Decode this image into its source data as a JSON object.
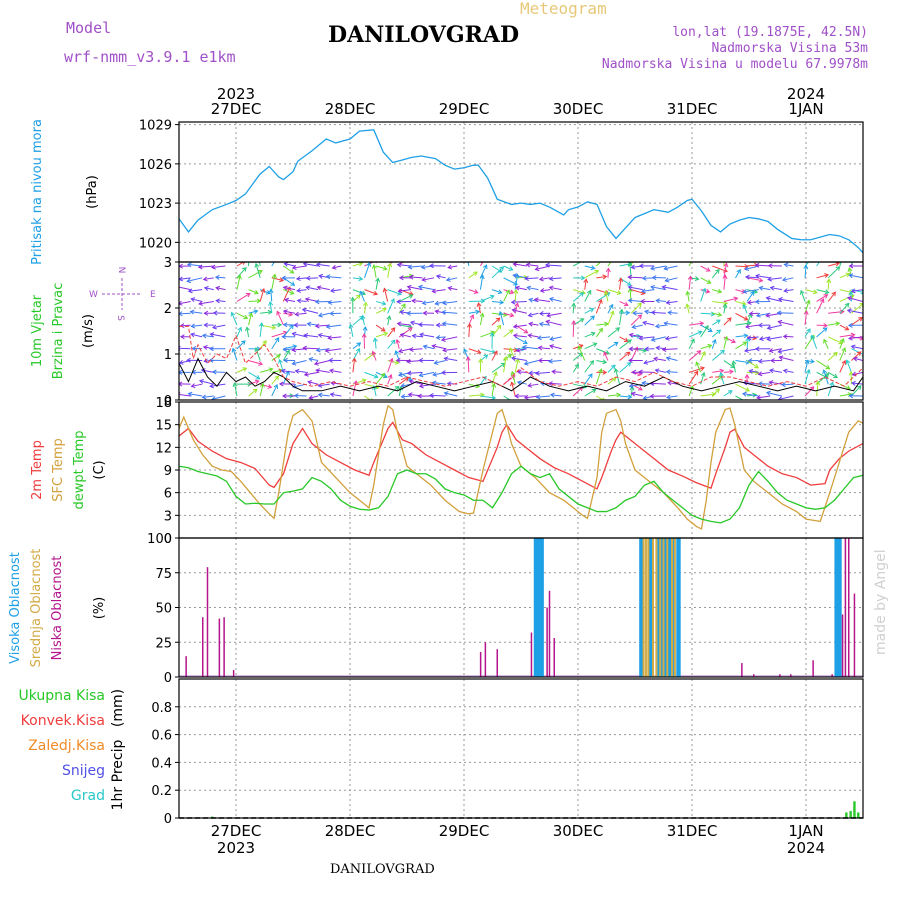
{
  "header": {
    "model_label": "Model",
    "model_value": "wrf-nmm_v3.9.1 e1km",
    "title": "DANILOVGRAD",
    "subtitle": "Meteogram",
    "lonlat": "lon,lat (19.1875E, 42.5N)",
    "elevation": "Nadmorska Visina 53m",
    "model_elevation": "Nadmorska Visina u modelu 67.9978m",
    "footer": "DANILOVGRAD",
    "credit": "made by Angel"
  },
  "colors": {
    "pressure": "#1ea0e6",
    "temp2m": "#f03c3c",
    "sfc_temp": "#d2a03c",
    "dewpoint": "#28c828",
    "high_cloud": "#1ea0e6",
    "mid_cloud": "#d2aa46",
    "low_cloud": "#b4148c",
    "total_precip": "#28c828",
    "conv_precip": "#f03c3c",
    "frozen_precip": "#f08c28",
    "snow": "#5050e6",
    "graupel": "#28c8c8",
    "wind_speed": "#000000",
    "wind_gust": "#f03c3c",
    "model_label": "#a050c8",
    "subtitle": "#e6c878"
  },
  "chart_data": [
    {
      "type": "line",
      "panel": "pressure",
      "ylabel": "Pritisak na nivou mora",
      "unit": "(hPa)",
      "ylim": [
        1018.5,
        1029.2
      ],
      "yticks": [
        1020,
        1023,
        1026,
        1029
      ],
      "x_unit": "hours from 2023-12-26 12:00",
      "x_dates_top": [
        {
          "x": 12,
          "label": "27DEC",
          "year": "2023"
        },
        {
          "x": 36,
          "label": "28DEC"
        },
        {
          "x": 60,
          "label": "29DEC"
        },
        {
          "x": 84,
          "label": "30DEC"
        },
        {
          "x": 108,
          "label": "31DEC"
        },
        {
          "x": 132,
          "label": "1JAN",
          "year": "2024"
        }
      ],
      "series": [
        {
          "name": "Pritisak na nivou mora",
          "x": [
            0,
            2,
            4,
            7,
            10,
            12,
            14,
            17,
            19,
            21,
            22,
            24,
            25,
            28,
            31,
            33,
            36,
            38,
            41,
            43,
            45,
            47,
            49,
            51,
            54,
            56,
            58,
            60,
            62,
            63,
            65,
            67,
            70,
            72,
            74,
            76,
            78,
            80,
            81,
            82,
            84,
            86,
            88,
            90,
            92,
            94,
            96,
            98,
            100,
            103,
            105,
            107,
            108,
            110,
            112,
            114,
            116,
            118,
            120,
            122,
            124,
            126,
            129,
            131,
            133,
            135,
            137,
            139,
            141,
            143,
            144
          ],
          "values": [
            1021.8,
            1020.8,
            1021.7,
            1022.5,
            1022.9,
            1023.2,
            1023.7,
            1025.2,
            1025.8,
            1025.0,
            1024.8,
            1025.4,
            1026.2,
            1027.0,
            1027.9,
            1027.6,
            1027.9,
            1028.5,
            1028.6,
            1026.9,
            1026.1,
            1026.3,
            1026.5,
            1026.6,
            1026.4,
            1025.9,
            1025.6,
            1025.7,
            1025.9,
            1025.9,
            1024.9,
            1023.3,
            1022.9,
            1023.0,
            1022.9,
            1023.0,
            1022.7,
            1022.3,
            1022.1,
            1022.5,
            1022.7,
            1023.1,
            1022.9,
            1021.2,
            1020.3,
            1021.1,
            1021.9,
            1022.2,
            1022.5,
            1022.3,
            1022.7,
            1023.2,
            1023.3,
            1022.4,
            1021.3,
            1020.8,
            1021.4,
            1021.7,
            1021.9,
            1021.8,
            1021.6,
            1021.0,
            1020.3,
            1020.2,
            1020.2,
            1020.4,
            1020.6,
            1020.5,
            1020.2,
            1019.6,
            1019.2
          ]
        }
      ]
    },
    {
      "type": "line",
      "panel": "wind",
      "ylabel": "10m Vjetar Brzina i Pravac",
      "unit": "(m/s)",
      "ylim": [
        0,
        3
      ],
      "yticks": [
        0,
        1,
        2,
        3
      ],
      "compass": {
        "n": "N",
        "e": "E",
        "s": "S",
        "w": "W"
      },
      "series": [
        {
          "name": "speed",
          "x": [
            0,
            2,
            4,
            6,
            8,
            10,
            12,
            14,
            16,
            18,
            20,
            22,
            24,
            26,
            30,
            34,
            38,
            42,
            46,
            50,
            54,
            58,
            62,
            66,
            70,
            74,
            78,
            82,
            86,
            90,
            94,
            98,
            102,
            106,
            110,
            114,
            118,
            122,
            126,
            130,
            134,
            138,
            142,
            144
          ],
          "values": [
            0.8,
            0.4,
            0.9,
            0.5,
            0.3,
            0.6,
            0.4,
            0.5,
            0.3,
            0.4,
            0.6,
            0.5,
            0.3,
            0.2,
            0.2,
            0.3,
            0.2,
            0.3,
            0.2,
            0.4,
            0.3,
            0.2,
            0.3,
            0.4,
            0.2,
            0.5,
            0.3,
            0.2,
            0.3,
            0.2,
            0.4,
            0.3,
            0.5,
            0.3,
            0.2,
            0.3,
            0.4,
            0.3,
            0.2,
            0.3,
            0.2,
            0.3,
            0.2,
            0.5
          ]
        },
        {
          "name": "gust",
          "x": [
            0,
            2,
            3,
            4,
            6,
            8,
            10,
            12,
            14,
            16,
            18,
            20,
            22,
            24,
            28,
            32,
            36,
            40,
            44,
            48,
            52,
            56,
            60,
            64,
            68,
            72,
            76,
            80,
            84,
            88,
            92,
            96,
            100,
            104,
            108,
            112,
            116,
            120,
            124,
            128,
            132,
            136,
            140,
            144
          ],
          "values": [
            1.6,
            1.6,
            0.9,
            1.2,
            0.8,
            1.0,
            0.9,
            1.4,
            0.8,
            1.0,
            1.2,
            0.9,
            0.5,
            0.4,
            0.3,
            0.4,
            0.3,
            0.4,
            0.3,
            0.5,
            0.4,
            0.3,
            0.4,
            0.5,
            0.3,
            0.7,
            0.4,
            0.3,
            0.4,
            0.3,
            0.5,
            0.4,
            0.6,
            0.4,
            0.3,
            0.5,
            0.5,
            0.4,
            0.3,
            0.4,
            0.3,
            0.5,
            0.3,
            0.7
          ]
        }
      ]
    },
    {
      "type": "line",
      "panel": "temperature",
      "ylabel": [
        "2m Temp",
        "SFC Temp",
        "dewpt Temp"
      ],
      "unit": "(C)",
      "ylim": [
        0,
        18
      ],
      "yticks": [
        0,
        3,
        6,
        9,
        12,
        15,
        18
      ],
      "series": [
        {
          "name": "2m Temp",
          "x": [
            0,
            2,
            4,
            7,
            10,
            13,
            16,
            19,
            20,
            22,
            23,
            24,
            26,
            28,
            31,
            34,
            37,
            40,
            41,
            43,
            44,
            45,
            47,
            49,
            52,
            55,
            58,
            61,
            64,
            65,
            67,
            68,
            69,
            71,
            73,
            76,
            79,
            82,
            85,
            88,
            89,
            91,
            92,
            93,
            95,
            97,
            100,
            103,
            106,
            109,
            112,
            113,
            115,
            116,
            117,
            119,
            121,
            124,
            127,
            130,
            133,
            136,
            137,
            139,
            141,
            144
          ],
          "values": [
            13.5,
            14.5,
            12.8,
            11.5,
            10.5,
            10.0,
            9.2,
            7.0,
            6.7,
            8.5,
            10.5,
            12.5,
            14.5,
            12.5,
            11.0,
            10.0,
            9.0,
            8.3,
            10.0,
            13.0,
            14.5,
            15.3,
            13.0,
            12.5,
            11.0,
            10.0,
            9.0,
            8.0,
            7.5,
            9.0,
            12.0,
            14.0,
            15.0,
            13.0,
            12.0,
            10.5,
            9.3,
            8.5,
            7.5,
            6.5,
            8.0,
            11.5,
            13.0,
            14.0,
            13.0,
            12.0,
            10.5,
            9.0,
            8.2,
            7.3,
            6.6,
            8.5,
            12.0,
            14.0,
            14.4,
            12.0,
            11.0,
            9.5,
            8.5,
            8.0,
            7.0,
            7.2,
            9.0,
            10.5,
            11.5,
            12.5
          ]
        },
        {
          "name": "SFC Temp",
          "x": [
            0,
            1,
            3,
            5,
            7,
            9,
            11,
            13,
            15,
            17,
            19,
            20,
            21,
            22,
            23,
            24,
            26,
            28,
            30,
            33,
            36,
            39,
            40,
            41,
            42,
            43,
            44,
            45,
            46,
            48,
            50,
            53,
            56,
            59,
            61,
            62,
            64,
            66,
            67,
            68,
            69,
            70,
            72,
            75,
            78,
            81,
            83,
            85,
            86,
            88,
            89,
            90,
            92,
            93,
            94,
            96,
            99,
            102,
            105,
            107,
            109,
            110,
            111,
            112,
            113,
            115,
            116,
            117,
            118,
            119,
            121,
            124,
            127,
            130,
            132,
            134,
            135,
            137,
            139,
            141,
            143,
            144
          ],
          "values": [
            14.5,
            16.0,
            13.0,
            11.0,
            9.5,
            9.0,
            8.8,
            7.5,
            6.0,
            4.5,
            3.2,
            2.6,
            6.0,
            10.0,
            14.0,
            16.2,
            17.0,
            15.5,
            10.0,
            8.0,
            6.0,
            4.5,
            4.0,
            7.0,
            11.0,
            15.0,
            17.5,
            17.0,
            14.0,
            9.5,
            8.5,
            7.0,
            5.0,
            3.5,
            3.2,
            3.3,
            9.0,
            14.0,
            16.5,
            17.0,
            15.0,
            12.5,
            9.5,
            8.0,
            6.0,
            5.0,
            4.0,
            3.0,
            2.6,
            8.0,
            14.0,
            16.5,
            17.0,
            15.5,
            12.5,
            9.0,
            7.5,
            6.0,
            4.0,
            2.5,
            1.5,
            1.2,
            5.0,
            10.0,
            14.0,
            17.0,
            17.2,
            15.0,
            12.0,
            9.0,
            7.5,
            6.0,
            4.5,
            3.5,
            2.5,
            2.3,
            2.2,
            6.0,
            10.0,
            14.0,
            15.5,
            15.2
          ]
        },
        {
          "name": "dewpt Temp",
          "x": [
            0,
            2,
            4,
            6,
            8,
            10,
            12,
            14,
            16,
            18,
            20,
            22,
            24,
            26,
            28,
            30,
            32,
            34,
            36,
            38,
            40,
            42,
            44,
            46,
            48,
            50,
            52,
            54,
            56,
            58,
            60,
            62,
            64,
            66,
            68,
            70,
            72,
            74,
            76,
            78,
            80,
            82,
            84,
            86,
            88,
            90,
            92,
            94,
            96,
            98,
            100,
            102,
            104,
            106,
            108,
            110,
            112,
            114,
            116,
            118,
            120,
            122,
            124,
            126,
            128,
            130,
            132,
            134,
            136,
            138,
            140,
            142,
            144
          ],
          "values": [
            9.5,
            9.3,
            8.8,
            8.5,
            8.2,
            7.5,
            5.5,
            4.5,
            4.6,
            4.5,
            4.5,
            6.0,
            6.2,
            6.5,
            8.0,
            7.5,
            6.5,
            5.0,
            4.2,
            3.8,
            3.7,
            4.0,
            5.5,
            8.5,
            9.0,
            8.5,
            8.5,
            7.8,
            6.5,
            6.0,
            5.7,
            5.0,
            5.0,
            4.0,
            6.0,
            8.5,
            9.5,
            8.5,
            8.0,
            8.5,
            6.5,
            5.5,
            4.5,
            4.0,
            3.5,
            3.5,
            4.0,
            5.0,
            5.5,
            7.0,
            7.5,
            6.0,
            5.0,
            4.0,
            3.0,
            2.5,
            2.2,
            2.0,
            2.5,
            4.0,
            7.0,
            8.8,
            7.5,
            6.0,
            5.0,
            4.5,
            4.0,
            3.8,
            4.0,
            5.0,
            6.5,
            8.0,
            8.3
          ]
        }
      ]
    },
    {
      "type": "bar",
      "panel": "cloud",
      "ylabel": [
        "Visoka Oblacnost",
        "Srednja Oblacnost",
        "Niska Oblacnost"
      ],
      "unit": "(%)",
      "ylim": [
        0,
        100
      ],
      "yticks": [
        0,
        25,
        50,
        75,
        100
      ],
      "series": [
        {
          "name": "Visoka Oblacnost",
          "x": [
            75,
            75.5,
            76,
            76.5,
            97.2,
            97.5,
            99,
            99.5,
            101,
            101.5,
            102.5,
            103,
            103.3,
            104,
            105,
            105.3,
            138.3,
            138.7,
            139.2
          ],
          "values": [
            100,
            100,
            100,
            100,
            100,
            100,
            100,
            100,
            100,
            100,
            100,
            100,
            100,
            100,
            100,
            100,
            100,
            100,
            100
          ]
        },
        {
          "name": "Srednja Oblacnost",
          "x": [
            97.8,
            98.3,
            98.8,
            99.8,
            100.5,
            101.3,
            102,
            102.8,
            103.8,
            104.4
          ],
          "values": [
            100,
            100,
            100,
            100,
            100,
            100,
            100,
            100,
            100,
            100
          ]
        },
        {
          "name": "Niska Oblacnost",
          "x": [
            1.5,
            5,
            6,
            8.5,
            9.5,
            11.5,
            63.5,
            64.5,
            67,
            74.2,
            77.5,
            78,
            79,
            118.5,
            121,
            126.5,
            128.8,
            133.5,
            137.5,
            139.7,
            140.3,
            141,
            142.2
          ],
          "values": [
            15,
            43,
            79,
            42,
            43,
            5,
            18,
            25,
            20,
            32,
            50,
            62,
            28,
            10,
            2,
            2,
            2,
            12,
            2,
            45,
            100,
            100,
            60
          ]
        }
      ]
    },
    {
      "type": "bar",
      "panel": "precipitation",
      "ylabel": "1hr Precip",
      "unit": "(mm)",
      "ylim": [
        0,
        1.0
      ],
      "yticks": [
        0,
        0.2,
        0.4,
        0.6,
        0.8
      ],
      "legend": [
        "Ukupna Kisa",
        "Konvek.Kisa",
        "Zaledj.Kisa",
        "Snijeg",
        "Grad"
      ],
      "x_dates_bottom": [
        {
          "x": 12,
          "label": "27DEC",
          "year": "2023"
        },
        {
          "x": 36,
          "label": "28DEC"
        },
        {
          "x": 60,
          "label": "29DEC"
        },
        {
          "x": 84,
          "label": "30DEC"
        },
        {
          "x": 108,
          "label": "31DEC"
        },
        {
          "x": 132,
          "label": "1JAN",
          "year": "2024"
        }
      ],
      "series": [
        {
          "name": "Ukupna Kisa",
          "x": [
            7,
            140.5,
            141.4,
            142.2,
            143
          ],
          "values": [
            0.01,
            0.04,
            0.05,
            0.12,
            0.04
          ]
        }
      ]
    }
  ]
}
